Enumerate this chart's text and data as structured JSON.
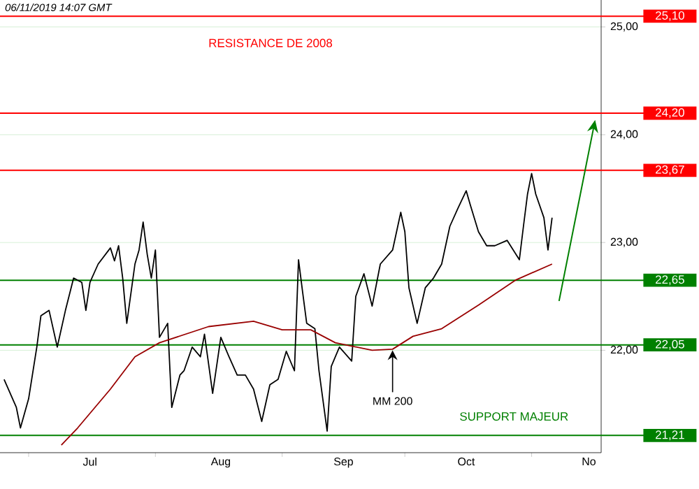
{
  "chart_data": {
    "type": "line",
    "xlim": [
      "2019-06-24",
      "2019-11-18"
    ],
    "ylim": [
      21.05,
      25.25
    ],
    "xticks": [
      {
        "value": "2019-07-01",
        "label": null
      },
      {
        "value": "2019-08-01",
        "label": null
      },
      {
        "value": "2019-09-01",
        "label": null
      },
      {
        "value": "2019-10-01",
        "label": null
      },
      {
        "value": "2019-11-01",
        "label": null
      },
      {
        "value": "2019-07-16",
        "label": "Jul"
      },
      {
        "value": "2019-08-17",
        "label": "Aug"
      },
      {
        "value": "2019-09-16",
        "label": "Sep"
      },
      {
        "value": "2019-10-16",
        "label": "Oct"
      },
      {
        "value": "2019-11-15",
        "label": "No"
      }
    ],
    "yticks": [
      {
        "value": 22,
        "label": "22,00"
      },
      {
        "value": 23,
        "label": "23,00"
      },
      {
        "value": 24,
        "label": "24,00"
      },
      {
        "value": 25,
        "label": "25,00"
      }
    ],
    "grid": "y",
    "marker": "none",
    "line_style": "solid",
    "series": [
      {
        "color": "#000000",
        "x": [
          "2019-06-25",
          "2019-06-28",
          "2019-06-29",
          "2019-07-01",
          "2019-07-03",
          "2019-07-04",
          "2019-07-06",
          "2019-07-08",
          "2019-07-10",
          "2019-07-12",
          "2019-07-14",
          "2019-07-15",
          "2019-07-16",
          "2019-07-18",
          "2019-07-21",
          "2019-07-22",
          "2019-07-23",
          "2019-07-24",
          "2019-07-25",
          "2019-07-27",
          "2019-07-28",
          "2019-07-29",
          "2019-07-30",
          "2019-07-31",
          "2019-08-01",
          "2019-08-02",
          "2019-08-04",
          "2019-08-05",
          "2019-08-07",
          "2019-08-08",
          "2019-08-10",
          "2019-08-12",
          "2019-08-13",
          "2019-08-15",
          "2019-08-17",
          "2019-08-19",
          "2019-08-21",
          "2019-08-23",
          "2019-08-25",
          "2019-08-27",
          "2019-08-29",
          "2019-08-31",
          "2019-09-02",
          "2019-09-04",
          "2019-09-05",
          "2019-09-06",
          "2019-09-07",
          "2019-09-09",
          "2019-09-10",
          "2019-09-12",
          "2019-09-13",
          "2019-09-15",
          "2019-09-18",
          "2019-09-19",
          "2019-09-21",
          "2019-09-23",
          "2019-09-25",
          "2019-09-28",
          "2019-09-30",
          "2019-10-01",
          "2019-10-02",
          "2019-10-04",
          "2019-10-06",
          "2019-10-08",
          "2019-10-10",
          "2019-10-12",
          "2019-10-14",
          "2019-10-16",
          "2019-10-17",
          "2019-10-19",
          "2019-10-21",
          "2019-10-23",
          "2019-10-26",
          "2019-10-29",
          "2019-10-30",
          "2019-10-31",
          "2019-11-01",
          "2019-11-02",
          "2019-11-04",
          "2019-11-05",
          "2019-11-06"
        ],
        "values": [
          21.73,
          21.47,
          21.28,
          21.55,
          22.03,
          22.32,
          22.37,
          22.03,
          22.37,
          22.67,
          22.63,
          22.37,
          22.63,
          22.8,
          22.95,
          22.83,
          22.97,
          22.67,
          22.25,
          22.8,
          22.93,
          23.19,
          22.89,
          22.67,
          22.93,
          22.12,
          22.25,
          21.47,
          21.77,
          21.81,
          22.03,
          21.94,
          22.15,
          21.6,
          22.12,
          21.94,
          21.77,
          21.77,
          21.64,
          21.34,
          21.68,
          21.73,
          21.99,
          21.81,
          22.84,
          22.54,
          22.25,
          22.2,
          21.81,
          21.25,
          21.85,
          22.03,
          21.9,
          22.5,
          22.71,
          22.41,
          22.8,
          22.93,
          23.28,
          23.1,
          22.58,
          22.25,
          22.58,
          22.67,
          22.8,
          23.15,
          23.32,
          23.48,
          23.35,
          23.1,
          22.97,
          22.97,
          23.02,
          22.84,
          23.15,
          23.45,
          23.64,
          23.45,
          23.23,
          22.93,
          23.23
        ]
      },
      {
        "color": "#990000",
        "x": [
          "2019-07-09",
          "2019-07-13",
          "2019-07-21",
          "2019-07-27",
          "2019-08-02",
          "2019-08-14",
          "2019-08-25",
          "2019-09-01",
          "2019-09-08",
          "2019-09-14",
          "2019-09-23",
          "2019-09-28",
          "2019-10-03",
          "2019-10-10",
          "2019-10-19",
          "2019-10-28",
          "2019-11-06"
        ],
        "values": [
          21.12,
          21.28,
          21.64,
          21.94,
          22.07,
          22.22,
          22.27,
          22.19,
          22.19,
          22.07,
          22.0,
          22.01,
          22.13,
          22.2,
          22.42,
          22.65,
          22.8
        ]
      }
    ],
    "ref_lines": [
      {
        "axis": "y",
        "value": 25.1,
        "label": "25,10",
        "color": "#ff0000"
      },
      {
        "axis": "y",
        "value": 24.2,
        "label": "24,20",
        "color": "#ff0000"
      },
      {
        "axis": "y",
        "value": 23.67,
        "label": "23,67",
        "color": "#ff0000"
      },
      {
        "axis": "y",
        "value": 22.65,
        "label": "22,65",
        "color": "#008000"
      },
      {
        "axis": "y",
        "value": 22.05,
        "label": "22,05",
        "color": "#008000"
      },
      {
        "axis": "y",
        "value": 21.21,
        "label": "21,21",
        "color": "#008000"
      }
    ],
    "annotations": [
      "06/11/2019  14:07 GMT",
      "RESISTANCE DE 2008",
      {
        "text": "MM 200",
        "x": "2019-09-28",
        "y": 22.0
      },
      "SUPPORT MAJEUR"
    ]
  }
}
